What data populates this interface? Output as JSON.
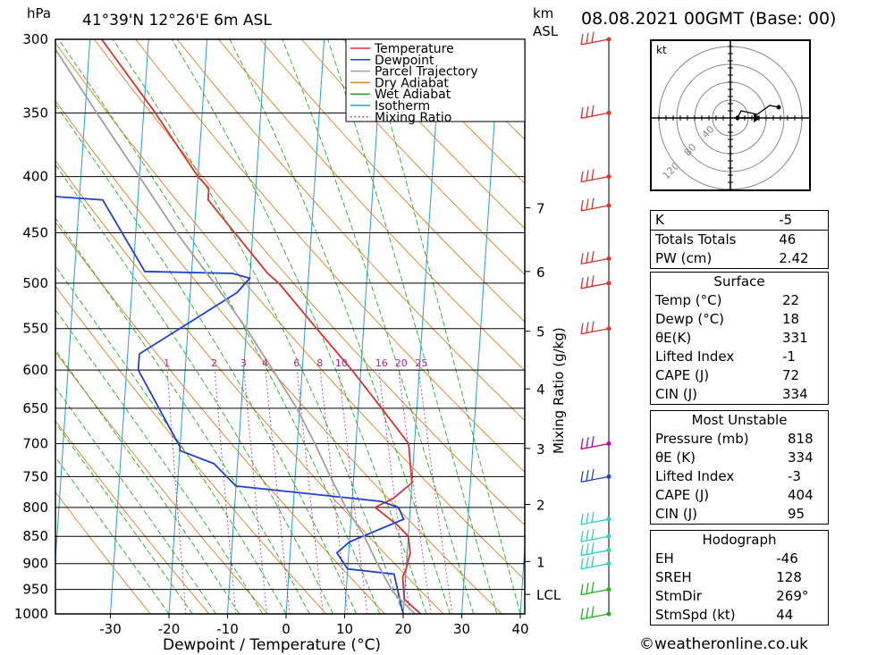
{
  "header": {
    "pressure_unit": "hPa",
    "location": "41°39'N 12°26'E 6m ASL",
    "km_unit": "km",
    "asl_label": "ASL",
    "datetime": "08.08.2021 00GMT (Base: 00)"
  },
  "legend": [
    {
      "label": "Temperature",
      "color": "#e03030",
      "style": "solid"
    },
    {
      "label": "Dewpoint",
      "color": "#2040d0",
      "style": "solid"
    },
    {
      "label": "Parcel Trajectory",
      "color": "#a0a0a0",
      "style": "solid"
    },
    {
      "label": "Dry Adiabat",
      "color": "#e08020",
      "style": "solid"
    },
    {
      "label": "Wet Adiabat",
      "color": "#20b020",
      "style": "solid"
    },
    {
      "label": "Isotherm",
      "color": "#20a0e0",
      "style": "solid"
    },
    {
      "label": "Mixing Ratio",
      "color": "#c020a0",
      "style": "dotted"
    }
  ],
  "chart_data": {
    "type": "line",
    "title": "41°39'N 12°26'E 6m ASL",
    "xlabel": "Dewpoint / Temperature (°C)",
    "ylabel": "hPa",
    "pressure_levels": [
      300,
      350,
      400,
      450,
      500,
      550,
      600,
      650,
      700,
      750,
      800,
      850,
      900,
      950,
      1000
    ],
    "x_ticks": [
      -30,
      -20,
      -10,
      0,
      10,
      20,
      30,
      40
    ],
    "xlim": [
      -40,
      40
    ],
    "ylim": [
      1000,
      300
    ],
    "y_scale": "log",
    "km_ticks": [
      {
        "label": "7",
        "p": 427
      },
      {
        "label": "6",
        "p": 488
      },
      {
        "label": "5",
        "p": 553
      },
      {
        "label": "4",
        "p": 624
      },
      {
        "label": "3",
        "p": 707
      },
      {
        "label": "2",
        "p": 795
      },
      {
        "label": "1",
        "p": 896
      },
      {
        "label": "LCL",
        "p": 960
      }
    ],
    "mixing_ratio_label": "Mixing Ratio (g/kg)",
    "mixing_ratios": [
      "1",
      "2",
      "3",
      "4",
      "6",
      "8",
      "10",
      "16",
      "20",
      "25"
    ],
    "series": [
      {
        "name": "Temperature",
        "color": "#e03030",
        "points": [
          [
            1000,
            23
          ],
          [
            970,
            20
          ],
          [
            925,
            19.5
          ],
          [
            910,
            20
          ],
          [
            880,
            20.5
          ],
          [
            850,
            20
          ],
          [
            830,
            18
          ],
          [
            800,
            14
          ],
          [
            785,
            17
          ],
          [
            760,
            20
          ],
          [
            700,
            19
          ],
          [
            650,
            14
          ],
          [
            600,
            8.5
          ],
          [
            550,
            2
          ],
          [
            500,
            -5
          ],
          [
            490,
            -7
          ],
          [
            420,
            -18
          ],
          [
            410,
            -18
          ],
          [
            400,
            -20
          ],
          [
            350,
            -28
          ],
          [
            300,
            -38
          ]
        ]
      },
      {
        "name": "Dewpoint",
        "color": "#2040d0",
        "points": [
          [
            1000,
            20
          ],
          [
            960,
            19
          ],
          [
            920,
            18
          ],
          [
            910,
            10
          ],
          [
            880,
            8
          ],
          [
            860,
            10
          ],
          [
            820,
            19
          ],
          [
            800,
            18
          ],
          [
            790,
            15
          ],
          [
            765,
            -10
          ],
          [
            730,
            -14
          ],
          [
            710,
            -20
          ],
          [
            705,
            -20
          ],
          [
            600,
            -28
          ],
          [
            580,
            -28
          ],
          [
            510,
            -12
          ],
          [
            495,
            -10
          ],
          [
            490,
            -13
          ],
          [
            488,
            -28
          ],
          [
            420,
            -36
          ],
          [
            415,
            -50
          ],
          [
            405,
            -46
          ],
          [
            400,
            -46
          ],
          [
            350,
            -52
          ],
          [
            300,
            -60
          ]
        ]
      },
      {
        "name": "Parcel Trajectory",
        "color": "#a0a0a0",
        "points": [
          [
            1000,
            22
          ],
          [
            955,
            18
          ],
          [
            900,
            15
          ],
          [
            850,
            12.5
          ],
          [
            800,
            9
          ],
          [
            750,
            6
          ],
          [
            700,
            3
          ],
          [
            650,
            -0.5
          ],
          [
            600,
            -5
          ],
          [
            550,
            -10
          ],
          [
            500,
            -16
          ],
          [
            450,
            -23
          ],
          [
            400,
            -30
          ],
          [
            350,
            -38
          ],
          [
            300,
            -47
          ]
        ]
      }
    ],
    "wind_barbs": [
      {
        "p": 1000,
        "color": "#20b020"
      },
      {
        "p": 950,
        "color": "#20b020"
      },
      {
        "p": 900,
        "color": "#30d0c0"
      },
      {
        "p": 875,
        "color": "#30d0c0"
      },
      {
        "p": 850,
        "color": "#30d0c0"
      },
      {
        "p": 820,
        "color": "#30d0c0"
      },
      {
        "p": 750,
        "color": "#2040d0"
      },
      {
        "p": 700,
        "color": "#c000a0"
      },
      {
        "p": 550,
        "color": "#e03030"
      },
      {
        "p": 500,
        "color": "#e03030"
      },
      {
        "p": 475,
        "color": "#e03030"
      },
      {
        "p": 425,
        "color": "#e03030"
      },
      {
        "p": 400,
        "color": "#e03030"
      },
      {
        "p": 350,
        "color": "#e03030"
      },
      {
        "p": 300,
        "color": "#e03030"
      }
    ]
  },
  "hodograph": {
    "unit_label": "kt",
    "ring_labels": [
      "40",
      "80",
      "120"
    ]
  },
  "indices": {
    "K": "-5",
    "totals_totals": "46",
    "pw": "2.42",
    "k_label": "K",
    "tt_label": "Totals Totals",
    "pw_label": "PW (cm)"
  },
  "surface": {
    "title": "Surface",
    "temp_label": "Temp (°C)",
    "temp": "22",
    "dewp_label": "Dewp (°C)",
    "dewp": "18",
    "thetae_label": "θE(K)",
    "thetae": "331",
    "li_label": "Lifted Index",
    "li": "-1",
    "cape_label": "CAPE (J)",
    "cape": "72",
    "cin_label": "CIN (J)",
    "cin": "334"
  },
  "most_unstable": {
    "title": "Most Unstable",
    "pressure_label": "Pressure (mb)",
    "pressure": "818",
    "thetae_label": "θE (K)",
    "thetae": "334",
    "li_label": "Lifted Index",
    "li": "-3",
    "cape_label": "CAPE (J)",
    "cape": "404",
    "cin_label": "CIN (J)",
    "cin": "95"
  },
  "hodograph_table": {
    "title": "Hodograph",
    "eh_label": "EH",
    "eh": "-46",
    "sreh_label": "SREH",
    "sreh": "128",
    "stmdir_label": "StmDir",
    "stmdir": "269°",
    "stmspd_label": "StmSpd (kt)",
    "stmspd": "44"
  },
  "credit": "©weatheronline.co.uk"
}
